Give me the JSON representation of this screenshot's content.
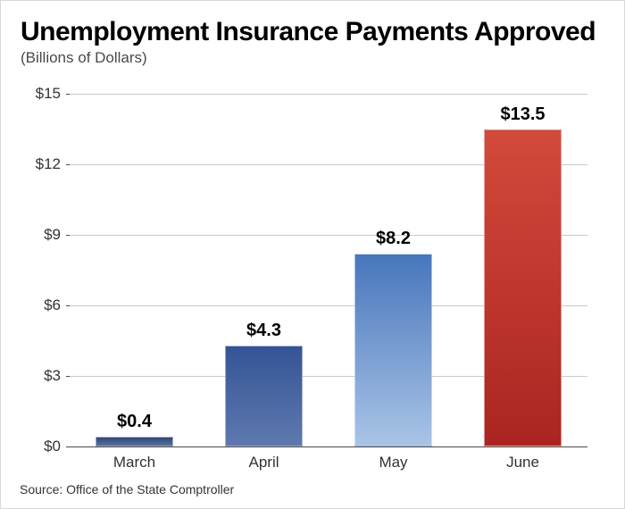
{
  "title": "Unemployment Insurance Payments Approved",
  "subtitle": "(Billions of Dollars)",
  "source": "Source: Office of the State Comptroller",
  "chart": {
    "type": "bar",
    "background_color": "#ffffff",
    "grid_color": "#c9c9c9",
    "axis_color": "#4a4a4a",
    "title_fontsize": 30,
    "subtitle_fontsize": 17,
    "label_fontsize": 17,
    "value_label_fontsize": 20,
    "ylim": [
      0,
      15
    ],
    "ytick_step": 3,
    "ytick_labels": [
      "$0",
      "$3",
      "$6",
      "$9",
      "$12",
      "$15"
    ],
    "categories": [
      "March",
      "April",
      "May",
      "June"
    ],
    "values": [
      0.4,
      4.3,
      8.2,
      13.5
    ],
    "value_labels": [
      "$0.4",
      "$4.3",
      "$8.2",
      "$13.5"
    ],
    "bar_width_pct": 60,
    "bars": [
      {
        "fill_top": "#2f4776",
        "fill_bottom": "#57729e"
      },
      {
        "fill_top": "#355496",
        "fill_bottom": "#5f79af"
      },
      {
        "fill_top": "#4876bc",
        "fill_bottom": "#a9c4e6"
      },
      {
        "fill_top": "#d24a3b",
        "fill_bottom": "#ab2421"
      }
    ]
  }
}
